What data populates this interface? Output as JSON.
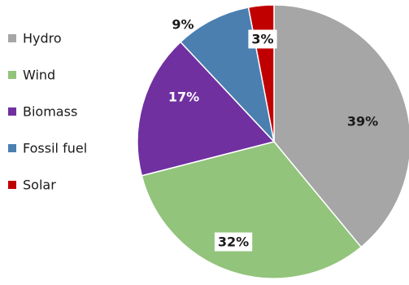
{
  "chart_data": {
    "type": "pie",
    "title": "",
    "slices": [
      {
        "label": "Hydro",
        "value": 39,
        "display": "39%",
        "color": "#a6a6a6"
      },
      {
        "label": "Wind",
        "value": 32,
        "display": "32%",
        "color": "#92c47c"
      },
      {
        "label": "Biomass",
        "value": 17,
        "display": "17%",
        "color": "#7030a0"
      },
      {
        "label": "Fossil fuel",
        "value": 9,
        "display": "9%",
        "color": "#4a7fb0"
      },
      {
        "label": "Solar",
        "value": 3,
        "display": "3%",
        "color": "#c00000"
      }
    ],
    "start_angle_deg": 0,
    "direction": "clockwise",
    "legend_position": "left",
    "data_labels": "percent"
  }
}
